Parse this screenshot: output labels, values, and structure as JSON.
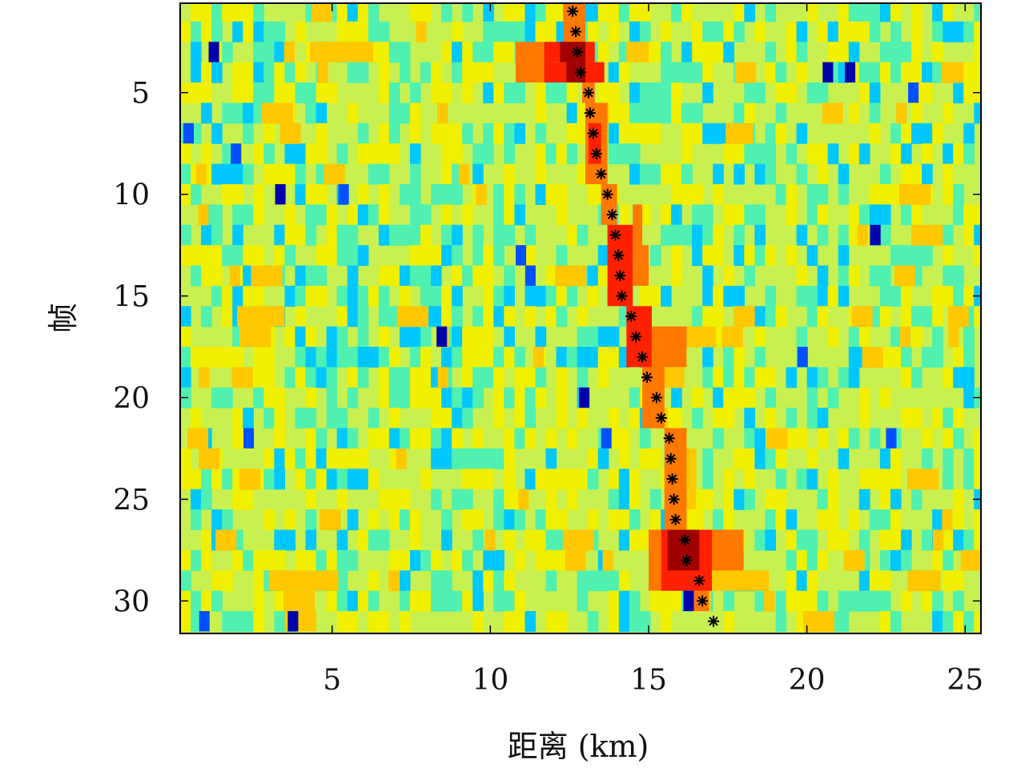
{
  "chart_data": {
    "type": "heatmap",
    "xlabel": "距离 (km)",
    "ylabel": "帧",
    "xlim": [
      0.2,
      25.5
    ],
    "ylim": [
      0.6,
      31.6
    ],
    "y_reversed": true,
    "x_ticks": [
      5,
      10,
      15,
      20,
      25
    ],
    "y_ticks": [
      5,
      10,
      15,
      20,
      25,
      30
    ],
    "x_tick_labels": [
      "5",
      "10",
      "15",
      "20",
      "25"
    ],
    "y_tick_labels": [
      "5",
      "10",
      "15",
      "20",
      "25",
      "30"
    ],
    "colormap": [
      "#0000aa",
      "#0050ff",
      "#00c8ff",
      "#50f0b0",
      "#c8f050",
      "#f0f000",
      "#ffc800",
      "#ff7800",
      "#ff2000",
      "#a00000"
    ],
    "background_color": "#c8f050",
    "track": {
      "name": "",
      "marker": "*",
      "frames": [
        1,
        2,
        3,
        4,
        5,
        6,
        7,
        8,
        9,
        10,
        11,
        12,
        13,
        14,
        15,
        16,
        17,
        18,
        19,
        20,
        21,
        22,
        23,
        24,
        25,
        26,
        27,
        28,
        29,
        30,
        31
      ],
      "range_km": [
        12.6,
        12.7,
        12.75,
        12.85,
        13.1,
        13.15,
        13.25,
        13.35,
        13.5,
        13.7,
        13.85,
        13.95,
        14.05,
        14.1,
        14.15,
        14.45,
        14.6,
        14.8,
        14.95,
        15.25,
        15.4,
        15.65,
        15.7,
        15.75,
        15.8,
        15.85,
        16.15,
        16.2,
        16.6,
        16.7,
        17.05
      ]
    },
    "hot_spots": [
      {
        "frame_start": 1,
        "frame_end": 1,
        "x_start": 12.3,
        "x_end": 13.0,
        "level": 7
      },
      {
        "frame_start": 2,
        "frame_end": 2,
        "x_start": 12.3,
        "x_end": 13.0,
        "level": 7
      },
      {
        "frame_start": 3,
        "frame_end": 3,
        "x_start": 11.7,
        "x_end": 13.3,
        "level": 8
      },
      {
        "frame_start": 3,
        "frame_end": 3,
        "x_start": 12.2,
        "x_end": 13.0,
        "level": 9
      },
      {
        "frame_start": 4,
        "frame_end": 4,
        "x_start": 11.7,
        "x_end": 13.6,
        "level": 8
      },
      {
        "frame_start": 4,
        "frame_end": 4,
        "x_start": 12.4,
        "x_end": 13.0,
        "level": 9
      },
      {
        "frame_start": 3,
        "frame_end": 4,
        "x_start": 10.8,
        "x_end": 11.7,
        "level": 7
      },
      {
        "frame_start": 3,
        "frame_end": 3,
        "x_start": 4.3,
        "x_end": 6.3,
        "level": 6
      },
      {
        "frame_start": 3,
        "frame_end": 3,
        "x_start": 14.3,
        "x_end": 15.0,
        "level": 6
      },
      {
        "frame_start": 5,
        "frame_end": 5,
        "x_start": 12.9,
        "x_end": 13.3,
        "level": 7
      },
      {
        "frame_start": 6,
        "frame_end": 9,
        "x_start": 13.0,
        "x_end": 13.7,
        "level": 7
      },
      {
        "frame_start": 7,
        "frame_end": 8,
        "x_start": 13.1,
        "x_end": 13.5,
        "level": 8
      },
      {
        "frame_start": 10,
        "frame_end": 11,
        "x_start": 13.5,
        "x_end": 14.0,
        "level": 7
      },
      {
        "frame_start": 11,
        "frame_end": 12,
        "x_start": 14.5,
        "x_end": 14.8,
        "level": 7
      },
      {
        "frame_start": 12,
        "frame_end": 15,
        "x_start": 13.7,
        "x_end": 14.5,
        "level": 8
      },
      {
        "frame_start": 13,
        "frame_end": 14,
        "x_start": 14.5,
        "x_end": 15.0,
        "level": 7
      },
      {
        "frame_start": 16,
        "frame_end": 18,
        "x_start": 14.3,
        "x_end": 15.1,
        "level": 8
      },
      {
        "frame_start": 17,
        "frame_end": 18,
        "x_start": 15.1,
        "x_end": 16.2,
        "level": 7
      },
      {
        "frame_start": 19,
        "frame_end": 21,
        "x_start": 14.8,
        "x_end": 15.5,
        "level": 7
      },
      {
        "frame_start": 22,
        "frame_end": 26,
        "x_start": 15.5,
        "x_end": 16.2,
        "level": 7
      },
      {
        "frame_start": 23,
        "frame_end": 25,
        "x_start": 16.2,
        "x_end": 16.5,
        "level": 6
      },
      {
        "frame_start": 27,
        "frame_end": 29,
        "x_start": 15.0,
        "x_end": 18.0,
        "level": 7
      },
      {
        "frame_start": 27,
        "frame_end": 29,
        "x_start": 15.4,
        "x_end": 17.0,
        "level": 8
      },
      {
        "frame_start": 27,
        "frame_end": 28,
        "x_start": 15.6,
        "x_end": 16.6,
        "level": 9
      },
      {
        "frame_start": 29,
        "frame_end": 29,
        "x_start": 17.0,
        "x_end": 18.8,
        "level": 6
      },
      {
        "frame_start": 30,
        "frame_end": 30,
        "x_start": 16.2,
        "x_end": 16.9,
        "level": 7
      },
      {
        "frame_start": 31,
        "frame_end": 31,
        "x_start": 3.5,
        "x_end": 4.5,
        "level": 6
      },
      {
        "frame_start": 16,
        "frame_end": 16,
        "x_start": 2.0,
        "x_end": 3.5,
        "level": 6
      },
      {
        "frame_start": 29,
        "frame_end": 29,
        "x_start": 3.0,
        "x_end": 5.2,
        "level": 6
      }
    ],
    "cold_spots": [
      {
        "frame": 3,
        "x": 1.1,
        "level": 0
      },
      {
        "frame": 4,
        "x": 20.5,
        "level": 0
      },
      {
        "frame": 4,
        "x": 21.2,
        "level": 0
      },
      {
        "frame": 10,
        "x": 3.2,
        "level": 0
      },
      {
        "frame": 12,
        "x": 22.0,
        "level": 0
      },
      {
        "frame": 17,
        "x": 8.3,
        "level": 0
      },
      {
        "frame": 20,
        "x": 12.8,
        "level": 0
      },
      {
        "frame": 22,
        "x": 13.5,
        "level": 1
      },
      {
        "frame": 22,
        "x": 2.2,
        "level": 1
      },
      {
        "frame": 30,
        "x": 16.1,
        "level": 0
      },
      {
        "frame": 31,
        "x": 3.6,
        "level": 0
      },
      {
        "frame": 31,
        "x": 0.8,
        "level": 1
      },
      {
        "frame": 7,
        "x": 0.3,
        "level": 1
      },
      {
        "frame": 14,
        "x": 11.1,
        "level": 1
      },
      {
        "frame": 5,
        "x": 23.2,
        "level": 1
      },
      {
        "frame": 13,
        "x": 10.8,
        "level": 1
      },
      {
        "frame": 8,
        "x": 1.8,
        "level": 1
      },
      {
        "frame": 22,
        "x": 22.5,
        "level": 1
      },
      {
        "frame": 18,
        "x": 19.7,
        "level": 1
      },
      {
        "frame": 10,
        "x": 5.2,
        "level": 1
      }
    ]
  }
}
